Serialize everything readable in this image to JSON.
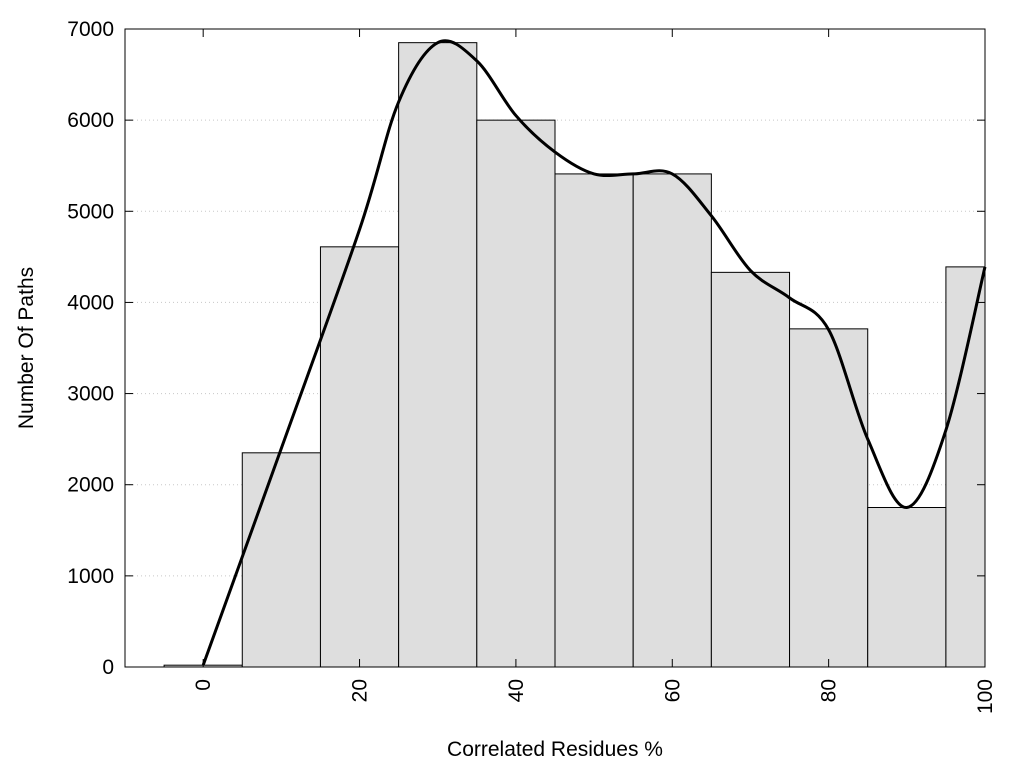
{
  "chart_data": {
    "type": "bar",
    "title": "",
    "xlabel": "Correlated Residues %",
    "ylabel": "Number Of Paths",
    "xlim": [
      -10,
      100
    ],
    "ylim": [
      0,
      7000
    ],
    "x_ticks": [
      "0",
      "20",
      "40",
      "60",
      "80",
      "100"
    ],
    "y_ticks": [
      "0",
      "1000",
      "2000",
      "3000",
      "4000",
      "5000",
      "6000",
      "7000"
    ],
    "grid": "horizontal-dotted",
    "legend": "none",
    "bar_width": 10,
    "bars": [
      {
        "x": 0,
        "value": 20
      },
      {
        "x": 10,
        "value": 2350
      },
      {
        "x": 20,
        "value": 4610
      },
      {
        "x": 30,
        "value": 6850
      },
      {
        "x": 40,
        "value": 6000
      },
      {
        "x": 50,
        "value": 5410
      },
      {
        "x": 60,
        "value": 5410
      },
      {
        "x": 70,
        "value": 4330
      },
      {
        "x": 80,
        "value": 3710
      },
      {
        "x": 90,
        "value": 1750
      },
      {
        "x": 100,
        "value": 4390
      }
    ],
    "curve": [
      [
        0,
        20
      ],
      [
        10,
        2400
      ],
      [
        20,
        4800
      ],
      [
        25,
        6200
      ],
      [
        30,
        6850
      ],
      [
        35,
        6650
      ],
      [
        40,
        6050
      ],
      [
        45,
        5650
      ],
      [
        50,
        5410
      ],
      [
        55,
        5410
      ],
      [
        60,
        5410
      ],
      [
        65,
        4950
      ],
      [
        70,
        4350
      ],
      [
        75,
        4050
      ],
      [
        80,
        3700
      ],
      [
        85,
        2500
      ],
      [
        90,
        1750
      ],
      [
        95,
        2600
      ],
      [
        100,
        4390
      ]
    ],
    "colors": {
      "bar_fill": "#dedede",
      "bar_stroke": "#000000",
      "curve": "#000000",
      "grid": "#c8c8c8"
    }
  }
}
